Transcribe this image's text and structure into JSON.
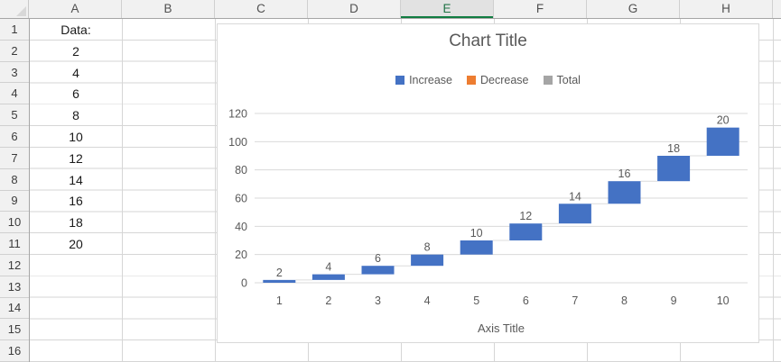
{
  "spreadsheet": {
    "column_headers": [
      "A",
      "B",
      "C",
      "D",
      "E",
      "F",
      "G",
      "H"
    ],
    "selected_column": "E",
    "row_numbers": [
      "1",
      "2",
      "3",
      "4",
      "5",
      "6",
      "7",
      "8",
      "9",
      "10",
      "11",
      "12",
      "13",
      "14",
      "15",
      "16"
    ],
    "column_a_values": [
      "Data:",
      "2",
      "4",
      "6",
      "8",
      "10",
      "12",
      "14",
      "16",
      "18",
      "20"
    ],
    "accent_colors": {
      "selected_header_text": "#217346",
      "selected_header_underline": "#107C41"
    }
  },
  "chart_data": {
    "type": "bar",
    "subtype": "waterfall",
    "title": "Chart Title",
    "xlabel": "Axis Title",
    "ylabel": "",
    "categories": [
      "1",
      "2",
      "3",
      "4",
      "5",
      "6",
      "7",
      "8",
      "9",
      "10"
    ],
    "values": [
      2,
      4,
      6,
      8,
      10,
      12,
      14,
      16,
      18,
      20
    ],
    "data_labels": [
      "2",
      "4",
      "6",
      "8",
      "10",
      "12",
      "14",
      "16",
      "18",
      "20"
    ],
    "cumulative_start": [
      0,
      2,
      6,
      12,
      20,
      30,
      42,
      56,
      72,
      90
    ],
    "cumulative_end": [
      2,
      6,
      12,
      20,
      30,
      42,
      56,
      72,
      90,
      110
    ],
    "ylim": [
      0,
      120
    ],
    "yticks": [
      0,
      20,
      40,
      60,
      80,
      100,
      120
    ],
    "grid": true,
    "colors": {
      "gridline": "#D9D9D9",
      "connector": "#DCDCDC"
    },
    "legend": {
      "position": "top",
      "entries": [
        {
          "label": "Increase",
          "color": "#4472C4"
        },
        {
          "label": "Decrease",
          "color": "#ED7D31"
        },
        {
          "label": "Total",
          "color": "#A5A5A5"
        }
      ]
    }
  }
}
